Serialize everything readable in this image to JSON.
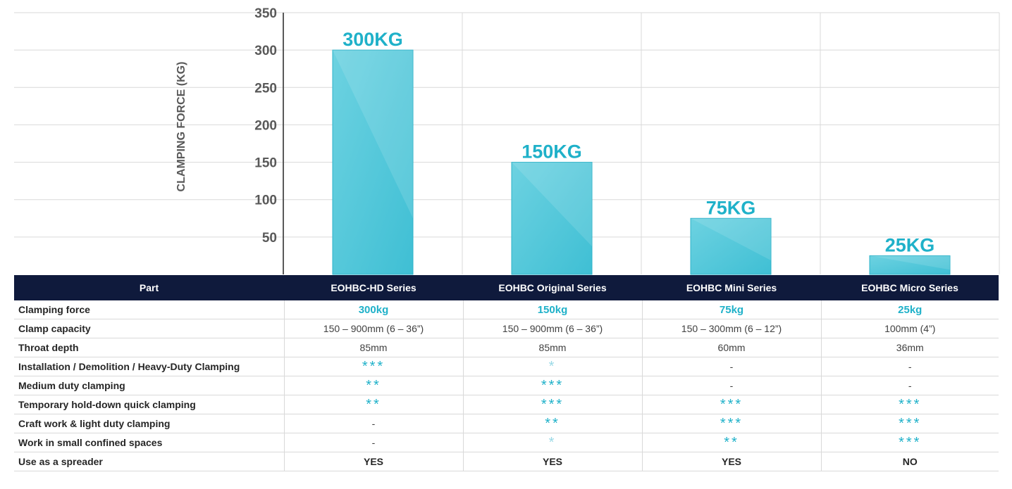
{
  "chart_data": {
    "type": "bar",
    "categories": [
      "EOHBC-HD Series",
      "EOHBC Original Series",
      "EOHBC Mini Series",
      "EOHBC Micro Series"
    ],
    "values": [
      300,
      150,
      75,
      25
    ],
    "data_labels": [
      "300KG",
      "150KG",
      "75KG",
      "25KG"
    ],
    "title": "",
    "xlabel": "",
    "ylabel": "CLAMPING FORCE (KG)",
    "ylim": [
      0,
      350
    ],
    "yticks": [
      50,
      100,
      150,
      200,
      250,
      300,
      350
    ],
    "grid": true,
    "legend": "none",
    "bar_color": "#5bcadb"
  },
  "table": {
    "header": [
      "Part",
      "EOHBC-HD Series",
      "EOHBC Original Series",
      "EOHBC Mini Series",
      "EOHBC Micro Series"
    ],
    "rows": [
      {
        "label": "Clamping  force",
        "cells": [
          "300kg",
          "150kg",
          "75kg",
          "25kg"
        ],
        "style": "force"
      },
      {
        "label": "Clamp capacity",
        "cells": [
          "150 – 900mm (6 – 36”)",
          "150 – 900mm (6 – 36”)",
          "150 – 300mm (6 – 12”)",
          "100mm (4”)"
        ],
        "style": "text"
      },
      {
        "label": "Throat depth",
        "cells": [
          "85mm",
          "85mm",
          "60mm",
          "36mm"
        ],
        "style": "text"
      },
      {
        "label": "Installation / Demolition / Heavy-Duty Clamping",
        "cells": [
          "***",
          "*",
          "-",
          "-"
        ],
        "style": "stars"
      },
      {
        "label": "Medium duty clamping",
        "cells": [
          "**",
          "***",
          "-",
          "-"
        ],
        "style": "stars"
      },
      {
        "label": "Temporary hold-down quick clamping",
        "cells": [
          "**",
          "***",
          "***",
          "***"
        ],
        "style": "stars"
      },
      {
        "label": "Craft work & light duty clamping",
        "cells": [
          "-",
          "**",
          "***",
          "***"
        ],
        "style": "stars"
      },
      {
        "label": "Work in small confined spaces",
        "cells": [
          "-",
          "*",
          "**",
          "***"
        ],
        "style": "stars"
      },
      {
        "label": "Use as a spreader",
        "cells": [
          "YES",
          "YES",
          "YES",
          "NO"
        ],
        "style": "yn"
      }
    ]
  }
}
